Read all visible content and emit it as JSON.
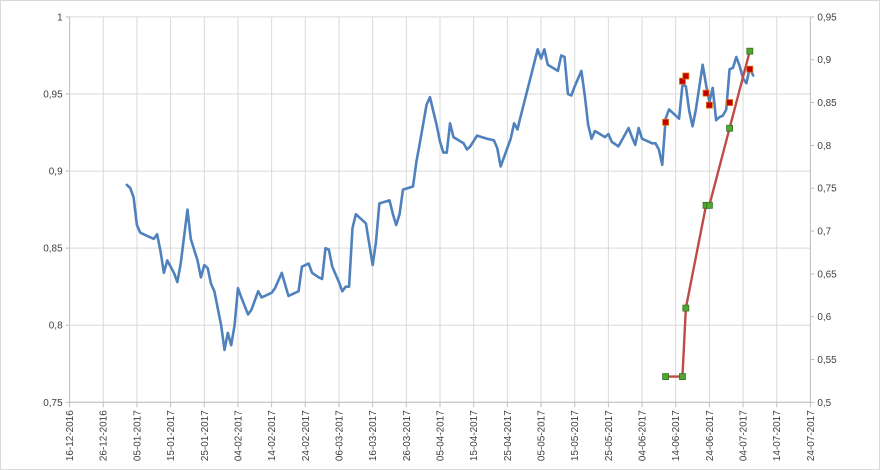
{
  "chart_data": {
    "type": "line",
    "grid": true,
    "x_axis": {
      "min": "2016-12-16",
      "max": "2017-07-24",
      "tick_labels": [
        "16-12-2016",
        "26-12-2016",
        "05-01-2017",
        "15-01-2017",
        "25-01-2017",
        "04-02-2017",
        "14-02-2017",
        "24-02-2017",
        "06-03-2017",
        "16-03-2017",
        "26-03-2017",
        "05-04-2017",
        "15-04-2017",
        "25-04-2017",
        "05-05-2017",
        "15-05-2017",
        "25-05-2017",
        "04-06-2017",
        "14-06-2017",
        "24-06-2017",
        "04-07-2017",
        "14-07-2017",
        "24-07-2017"
      ]
    },
    "y_axis_left": {
      "min": 0.75,
      "max": 1.0,
      "tick_labels": [
        "0,75",
        "0,8",
        "0,85",
        "0,9",
        "0,95",
        "1"
      ]
    },
    "y_axis_right": {
      "min": 0.5,
      "max": 0.95,
      "tick_labels": [
        "0,5",
        "0,55",
        "0,6",
        "0,65",
        "0,7",
        "0,75",
        "0,8",
        "0,85",
        "0,9",
        "0,95"
      ]
    },
    "series": [
      {
        "color": "#4f81bd",
        "axis": "left",
        "style": "line",
        "points": [
          [
            "2017-01-02",
            0.891
          ],
          [
            "2017-01-03",
            0.889
          ],
          [
            "2017-01-04",
            0.883
          ],
          [
            "2017-01-05",
            0.865
          ],
          [
            "2017-01-06",
            0.86
          ],
          [
            "2017-01-09",
            0.857
          ],
          [
            "2017-01-10",
            0.856
          ],
          [
            "2017-01-11",
            0.859
          ],
          [
            "2017-01-12",
            0.848
          ],
          [
            "2017-01-13",
            0.834
          ],
          [
            "2017-01-14",
            0.842
          ],
          [
            "2017-01-16",
            0.834
          ],
          [
            "2017-01-17",
            0.828
          ],
          [
            "2017-01-18",
            0.84
          ],
          [
            "2017-01-20",
            0.875
          ],
          [
            "2017-01-21",
            0.856
          ],
          [
            "2017-01-23",
            0.842
          ],
          [
            "2017-01-24",
            0.831
          ],
          [
            "2017-01-25",
            0.839
          ],
          [
            "2017-01-26",
            0.837
          ],
          [
            "2017-01-27",
            0.827
          ],
          [
            "2017-01-28",
            0.822
          ],
          [
            "2017-01-30",
            0.8
          ],
          [
            "2017-01-31",
            0.784
          ],
          [
            "2017-02-01",
            0.795
          ],
          [
            "2017-02-02",
            0.787
          ],
          [
            "2017-02-03",
            0.8
          ],
          [
            "2017-02-04",
            0.824
          ],
          [
            "2017-02-05",
            0.818
          ],
          [
            "2017-02-07",
            0.807
          ],
          [
            "2017-02-08",
            0.81
          ],
          [
            "2017-02-10",
            0.822
          ],
          [
            "2017-02-11",
            0.818
          ],
          [
            "2017-02-14",
            0.821
          ],
          [
            "2017-02-15",
            0.824
          ],
          [
            "2017-02-17",
            0.834
          ],
          [
            "2017-02-19",
            0.819
          ],
          [
            "2017-02-22",
            0.822
          ],
          [
            "2017-02-23",
            0.838
          ],
          [
            "2017-02-25",
            0.84
          ],
          [
            "2017-02-26",
            0.834
          ],
          [
            "2017-02-28",
            0.831
          ],
          [
            "2017-03-01",
            0.83
          ],
          [
            "2017-03-02",
            0.85
          ],
          [
            "2017-03-03",
            0.849
          ],
          [
            "2017-03-04",
            0.838
          ],
          [
            "2017-03-06",
            0.828
          ],
          [
            "2017-03-07",
            0.822
          ],
          [
            "2017-03-08",
            0.825
          ],
          [
            "2017-03-09",
            0.825
          ],
          [
            "2017-03-10",
            0.863
          ],
          [
            "2017-03-11",
            0.872
          ],
          [
            "2017-03-14",
            0.866
          ],
          [
            "2017-03-16",
            0.839
          ],
          [
            "2017-03-17",
            0.854
          ],
          [
            "2017-03-18",
            0.879
          ],
          [
            "2017-03-21",
            0.881
          ],
          [
            "2017-03-22",
            0.872
          ],
          [
            "2017-03-23",
            0.865
          ],
          [
            "2017-03-24",
            0.872
          ],
          [
            "2017-03-25",
            0.888
          ],
          [
            "2017-03-28",
            0.89
          ],
          [
            "2017-03-29",
            0.906
          ],
          [
            "2017-03-30",
            0.918
          ],
          [
            "2017-04-01",
            0.943
          ],
          [
            "2017-04-02",
            0.948
          ],
          [
            "2017-04-03",
            0.939
          ],
          [
            "2017-04-04",
            0.93
          ],
          [
            "2017-04-05",
            0.919
          ],
          [
            "2017-04-06",
            0.912
          ],
          [
            "2017-04-07",
            0.912
          ],
          [
            "2017-04-08",
            0.931
          ],
          [
            "2017-04-09",
            0.922
          ],
          [
            "2017-04-12",
            0.918
          ],
          [
            "2017-04-13",
            0.914
          ],
          [
            "2017-04-14",
            0.916
          ],
          [
            "2017-04-16",
            0.923
          ],
          [
            "2017-04-19",
            0.921
          ],
          [
            "2017-04-21",
            0.92
          ],
          [
            "2017-04-22",
            0.915
          ],
          [
            "2017-04-23",
            0.903
          ],
          [
            "2017-04-24",
            0.909
          ],
          [
            "2017-04-26",
            0.921
          ],
          [
            "2017-04-27",
            0.931
          ],
          [
            "2017-04-28",
            0.927
          ],
          [
            "2017-04-29",
            0.936
          ],
          [
            "2017-05-01",
            0.953
          ],
          [
            "2017-05-04",
            0.979
          ],
          [
            "2017-05-05",
            0.973
          ],
          [
            "2017-05-06",
            0.979
          ],
          [
            "2017-05-07",
            0.969
          ],
          [
            "2017-05-10",
            0.965
          ],
          [
            "2017-05-11",
            0.975
          ],
          [
            "2017-05-12",
            0.974
          ],
          [
            "2017-05-13",
            0.95
          ],
          [
            "2017-05-14",
            0.949
          ],
          [
            "2017-05-15",
            0.955
          ],
          [
            "2017-05-17",
            0.965
          ],
          [
            "2017-05-18",
            0.949
          ],
          [
            "2017-05-19",
            0.93
          ],
          [
            "2017-05-20",
            0.921
          ],
          [
            "2017-05-21",
            0.926
          ],
          [
            "2017-05-24",
            0.922
          ],
          [
            "2017-05-25",
            0.924
          ],
          [
            "2017-05-26",
            0.919
          ],
          [
            "2017-05-28",
            0.916
          ],
          [
            "2017-05-29",
            0.92
          ],
          [
            "2017-05-31",
            0.928
          ],
          [
            "2017-06-01",
            0.922
          ],
          [
            "2017-06-02",
            0.917
          ],
          [
            "2017-06-03",
            0.928
          ],
          [
            "2017-06-04",
            0.921
          ],
          [
            "2017-06-07",
            0.918
          ],
          [
            "2017-06-08",
            0.918
          ],
          [
            "2017-06-09",
            0.914
          ],
          [
            "2017-06-10",
            0.904
          ],
          [
            "2017-06-11",
            0.934
          ],
          [
            "2017-06-12",
            0.94
          ],
          [
            "2017-06-14",
            0.936
          ],
          [
            "2017-06-15",
            0.934
          ],
          [
            "2017-06-16",
            0.956
          ],
          [
            "2017-06-17",
            0.955
          ],
          [
            "2017-06-18",
            0.939
          ],
          [
            "2017-06-19",
            0.929
          ],
          [
            "2017-06-20",
            0.94
          ],
          [
            "2017-06-22",
            0.969
          ],
          [
            "2017-06-23",
            0.956
          ],
          [
            "2017-06-24",
            0.945
          ],
          [
            "2017-06-25",
            0.954
          ],
          [
            "2017-06-26",
            0.933
          ],
          [
            "2017-06-27",
            0.935
          ],
          [
            "2017-06-28",
            0.936
          ],
          [
            "2017-06-29",
            0.94
          ],
          [
            "2017-06-30",
            0.966
          ],
          [
            "2017-07-01",
            0.967
          ],
          [
            "2017-07-02",
            0.974
          ],
          [
            "2017-07-03",
            0.968
          ],
          [
            "2017-07-04",
            0.96
          ],
          [
            "2017-07-05",
            0.957
          ],
          [
            "2017-07-06",
            0.967
          ],
          [
            "2017-07-07",
            0.962
          ]
        ]
      },
      {
        "color": "#be4b48",
        "axis": "right",
        "style": "line-markers",
        "marker_color": "#4ea72e",
        "points": [
          [
            "2017-06-11",
            0.53
          ],
          [
            "2017-06-16",
            0.53
          ],
          [
            "2017-06-17",
            0.61
          ],
          [
            "2017-06-23",
            0.73
          ],
          [
            "2017-06-24",
            0.73
          ],
          [
            "2017-06-30",
            0.82
          ],
          [
            "2017-07-06",
            0.91
          ]
        ]
      },
      {
        "color": "#c00000",
        "axis": "right",
        "style": "markers",
        "points": [
          [
            "2017-06-11",
            0.827
          ],
          [
            "2017-06-16",
            0.875
          ],
          [
            "2017-06-17",
            0.881
          ],
          [
            "2017-06-23",
            0.861
          ],
          [
            "2017-06-24",
            0.847
          ],
          [
            "2017-06-30",
            0.85
          ],
          [
            "2017-07-06",
            0.889
          ]
        ]
      }
    ]
  }
}
